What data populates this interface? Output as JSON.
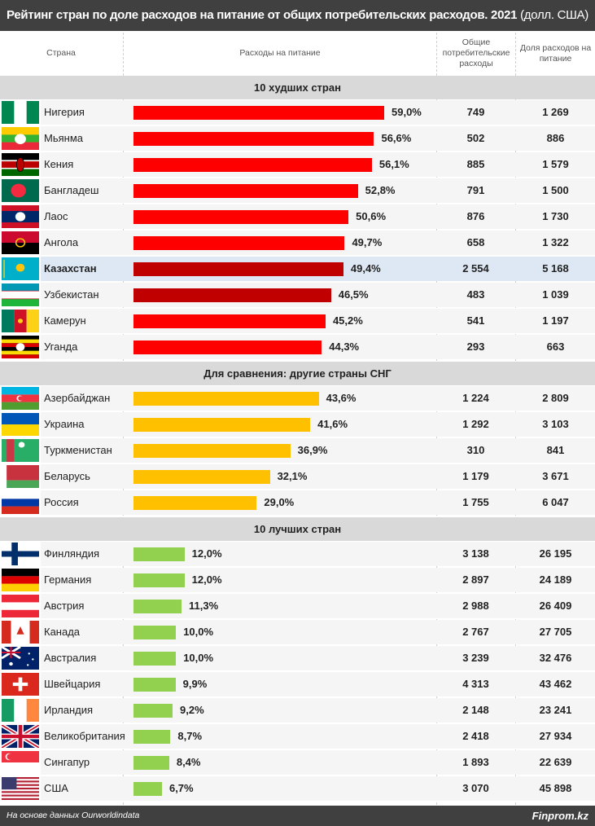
{
  "title": {
    "bold": "Рейтинг стран по доле расходов на питание от общих потребительских расходов. 2021",
    "normal": "(долл. США)"
  },
  "columns": {
    "country": "Страна",
    "food": "Расходы на питание",
    "total": "Общие потребительские расходы",
    "share": "Доля расходов на питание"
  },
  "colors": {
    "worst": "#ff0000",
    "highlight": "#c00000",
    "cis": "#ffc000",
    "best": "#92d050"
  },
  "chart_data": {
    "type": "bar",
    "orientation": "horizontal",
    "xlim": [
      0,
      60
    ],
    "groups": [
      {
        "title": "10 худших стран",
        "color": "worst",
        "rows": [
          {
            "country": "Нигерия",
            "flag": "ng",
            "value": 59.0,
            "label": "59,0%",
            "total": "749",
            "share": "1 269"
          },
          {
            "country": "Мьянма",
            "flag": "mm",
            "value": 56.6,
            "label": "56,6%",
            "total": "502",
            "share": "886"
          },
          {
            "country": "Кения",
            "flag": "ke",
            "value": 56.1,
            "label": "56,1%",
            "total": "885",
            "share": "1 579"
          },
          {
            "country": "Бангладеш",
            "flag": "bd",
            "value": 52.8,
            "label": "52,8%",
            "total": "791",
            "share": "1 500"
          },
          {
            "country": "Лаос",
            "flag": "la",
            "value": 50.6,
            "label": "50,6%",
            "total": "876",
            "share": "1 730"
          },
          {
            "country": "Ангола",
            "flag": "ao",
            "value": 49.7,
            "label": "49,7%",
            "total": "658",
            "share": "1 322"
          },
          {
            "country": "Казахстан",
            "flag": "kz",
            "value": 49.4,
            "label": "49,4%",
            "total": "2 554",
            "share": "5 168",
            "highlight": true,
            "color": "highlight"
          },
          {
            "country": "Узбекистан",
            "flag": "uz",
            "value": 46.5,
            "label": "46,5%",
            "total": "483",
            "share": "1 039",
            "color": "highlight"
          },
          {
            "country": "Камерун",
            "flag": "cm",
            "value": 45.2,
            "label": "45,2%",
            "total": "541",
            "share": "1 197"
          },
          {
            "country": "Уганда",
            "flag": "ug",
            "value": 44.3,
            "label": "44,3%",
            "total": "293",
            "share": "663"
          }
        ]
      },
      {
        "title": "Для сравнения: другие страны СНГ",
        "color": "cis",
        "rows": [
          {
            "country": "Азербайджан",
            "flag": "az",
            "value": 43.6,
            "label": "43,6%",
            "total": "1 224",
            "share": "2 809"
          },
          {
            "country": "Украина",
            "flag": "ua",
            "value": 41.6,
            "label": "41,6%",
            "total": "1 292",
            "share": "3 103"
          },
          {
            "country": "Туркменистан",
            "flag": "tm",
            "value": 36.9,
            "label": "36,9%",
            "total": "310",
            "share": "841"
          },
          {
            "country": "Беларусь",
            "flag": "by",
            "value": 32.1,
            "label": "32,1%",
            "total": "1 179",
            "share": "3 671"
          },
          {
            "country": "Россия",
            "flag": "ru",
            "value": 29.0,
            "label": "29,0%",
            "total": "1 755",
            "share": "6 047"
          }
        ]
      },
      {
        "title": "10 лучших стран",
        "color": "best",
        "rows": [
          {
            "country": "Финляндия",
            "flag": "fi",
            "value": 12.0,
            "label": "12,0%",
            "total": "3 138",
            "share": "26 195"
          },
          {
            "country": "Германия",
            "flag": "de",
            "value": 12.0,
            "label": "12,0%",
            "total": "2 897",
            "share": "24 189"
          },
          {
            "country": "Австрия",
            "flag": "at",
            "value": 11.3,
            "label": "11,3%",
            "total": "2 988",
            "share": "26 409"
          },
          {
            "country": "Канада",
            "flag": "ca",
            "value": 10.0,
            "label": "10,0%",
            "total": "2 767",
            "share": "27 705"
          },
          {
            "country": "Австралия",
            "flag": "au",
            "value": 10.0,
            "label": "10,0%",
            "total": "3 239",
            "share": "32 476"
          },
          {
            "country": "Швейцария",
            "flag": "ch",
            "value": 9.9,
            "label": "9,9%",
            "total": "4 313",
            "share": "43 462"
          },
          {
            "country": "Ирландия",
            "flag": "ie",
            "value": 9.2,
            "label": "9,2%",
            "total": "2 148",
            "share": "23 241"
          },
          {
            "country": "Великобритания",
            "flag": "gb",
            "value": 8.7,
            "label": "8,7%",
            "total": "2 418",
            "share": "27 934"
          },
          {
            "country": "Сингапур",
            "flag": "sg",
            "value": 8.4,
            "label": "8,4%",
            "total": "1 893",
            "share": "22 639"
          },
          {
            "country": "США",
            "flag": "us",
            "value": 6.7,
            "label": "6,7%",
            "total": "3 070",
            "share": "45 898"
          }
        ]
      }
    ]
  },
  "footer": {
    "source": "На основе данных Ourworldindata",
    "brand": "Finprom.kz"
  }
}
